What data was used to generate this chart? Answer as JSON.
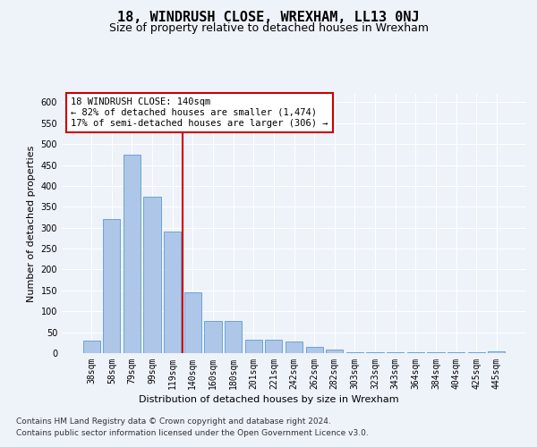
{
  "title": "18, WINDRUSH CLOSE, WREXHAM, LL13 0NJ",
  "subtitle": "Size of property relative to detached houses in Wrexham",
  "xlabel": "Distribution of detached houses by size in Wrexham",
  "ylabel": "Number of detached properties",
  "categories": [
    "38sqm",
    "58sqm",
    "79sqm",
    "99sqm",
    "119sqm",
    "140sqm",
    "160sqm",
    "180sqm",
    "201sqm",
    "221sqm",
    "242sqm",
    "262sqm",
    "282sqm",
    "303sqm",
    "323sqm",
    "343sqm",
    "364sqm",
    "384sqm",
    "404sqm",
    "425sqm",
    "445sqm"
  ],
  "values": [
    30,
    320,
    475,
    375,
    290,
    145,
    77,
    77,
    32,
    32,
    28,
    15,
    8,
    3,
    3,
    3,
    3,
    3,
    3,
    3,
    5
  ],
  "bar_color": "#aec6e8",
  "bar_edge_color": "#5b9bd5",
  "highlight_index": 5,
  "highlight_line_color": "#cc0000",
  "annotation_text": "18 WINDRUSH CLOSE: 140sqm\n← 82% of detached houses are smaller (1,474)\n17% of semi-detached houses are larger (306) →",
  "annotation_box_color": "#ffffff",
  "annotation_box_edge_color": "#cc0000",
  "ylim": [
    0,
    620
  ],
  "yticks": [
    0,
    50,
    100,
    150,
    200,
    250,
    300,
    350,
    400,
    450,
    500,
    550,
    600
  ],
  "background_color": "#eef2f9",
  "plot_bg_color": "#eef2f9",
  "footer_line1": "Contains HM Land Registry data © Crown copyright and database right 2024.",
  "footer_line2": "Contains public sector information licensed under the Open Government Licence v3.0.",
  "title_fontsize": 11,
  "subtitle_fontsize": 9,
  "xlabel_fontsize": 8,
  "ylabel_fontsize": 8,
  "tick_fontsize": 7,
  "annotation_fontsize": 7.5,
  "footer_fontsize": 6.5
}
